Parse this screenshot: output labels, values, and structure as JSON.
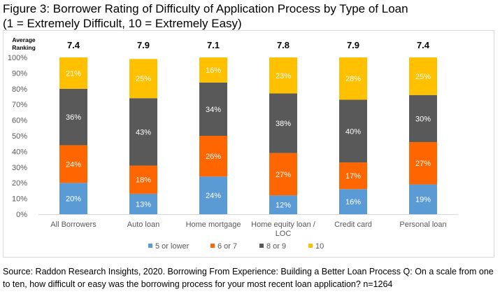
{
  "figure": {
    "title_line1": "Figure 3: Borrower Rating of Difficulty of Application Process by Type of Loan",
    "title_line2": "(1 = Extremely Difficult, 10 = Extremely Easy)",
    "source": "Source: Raddon Research Insights, 2020. Borrowing From Experience: Building a Better Loan Process Q: On a scale from one to ten, how difficult or easy was the borrowing process for your most recent loan application? n=1264"
  },
  "chart_data": {
    "type": "bar",
    "stacked": true,
    "categories": [
      "All Borrowers",
      "Auto loan",
      "Home mortgage",
      "Home equity loan / LOC",
      "Credit card",
      "Personal loan"
    ],
    "category_label_lines": [
      [
        "All Borrowers"
      ],
      [
        "Auto loan"
      ],
      [
        "Home mortgage"
      ],
      [
        "Home equity loan /",
        "LOC"
      ],
      [
        "Credit card"
      ],
      [
        "Personal loan"
      ]
    ],
    "average_ranking_label": [
      "Average",
      "Ranking"
    ],
    "average_ranking": [
      "7.4",
      "7.9",
      "7.1",
      "7.8",
      "7.9",
      "7.4"
    ],
    "series": [
      {
        "name": "5 or lower",
        "color": "#5b9bd5",
        "values": [
          20,
          13,
          24,
          12,
          16,
          19
        ]
      },
      {
        "name": "6 or 7",
        "color": "#ff6600",
        "values": [
          24,
          18,
          26,
          27,
          17,
          27
        ]
      },
      {
        "name": "8 or 9",
        "color": "#595959",
        "values": [
          36,
          43,
          34,
          38,
          40,
          30
        ]
      },
      {
        "name": "10",
        "color": "#ffc000",
        "values": [
          21,
          25,
          16,
          23,
          28,
          25
        ]
      }
    ],
    "ylim": [
      0,
      100
    ],
    "yticks": [
      "0%",
      "10%",
      "20%",
      "30%",
      "40%",
      "50%",
      "60%",
      "70%",
      "80%",
      "90%",
      "100%"
    ],
    "grid": false,
    "legend": "bottom"
  }
}
